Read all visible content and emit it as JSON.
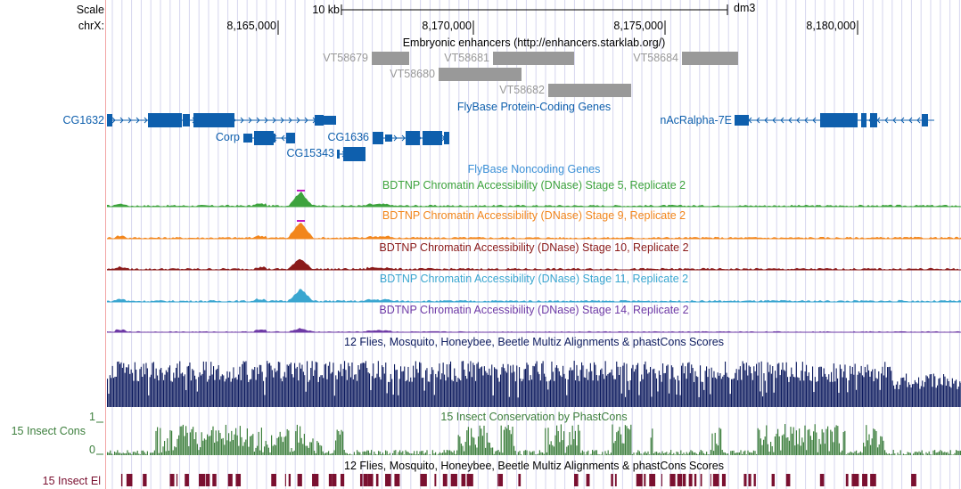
{
  "ruler": {
    "scale_label": "Scale",
    "chrom_label": "chrX:",
    "scalebar_label": "10 kb",
    "assembly": "dm3",
    "positions": [
      "8,165,000",
      "8,170,000",
      "8,175,000",
      "8,180,000"
    ]
  },
  "tracks": {
    "enhancers": {
      "title": "Embryonic enhancers (http://enhancers.starklab.org/)",
      "items": [
        "VT58679",
        "VT58681",
        "VT58684",
        "VT58680",
        "VT58682"
      ],
      "color": "#999999"
    },
    "protein_coding": {
      "title": "FlyBase Protein-Coding Genes",
      "genes": [
        "CG1632",
        "Corp",
        "CG1636",
        "CG15343",
        "nAcRalpha-7E"
      ],
      "color": "#0e5fad"
    },
    "noncoding": {
      "title": "FlyBase Noncoding Genes",
      "color": "#3a8fd6"
    },
    "dnase": [
      {
        "title": "BDTNP Chromatin Accessibility (DNase) Stage 5, Replicate 2",
        "color": "#3da33d"
      },
      {
        "title": "BDTNP Chromatin Accessibility (DNase) Stage 9, Replicate 2",
        "color": "#f2861c"
      },
      {
        "title": "BDTNP Chromatin Accessibility (DNase) Stage 10, Replicate 2",
        "color": "#8a1a1a"
      },
      {
        "title": "BDTNP Chromatin Accessibility (DNase) Stage 11, Replicate 2",
        "color": "#3aa6d0"
      },
      {
        "title": "BDTNP Chromatin Accessibility (DNase) Stage 14, Replicate 2",
        "color": "#6e3aa6"
      }
    ],
    "multiz": {
      "title": "12 Flies, Mosquito, Honeybee, Beetle Multiz Alignments & phastCons Scores",
      "color": "#0c1a5e"
    },
    "cons": {
      "title": "15 Insect Conservation by PhastCons",
      "side_label": "15 Insect Cons",
      "axis_max": "1",
      "axis_min": "0",
      "color": "#3d7f3d"
    },
    "elements": {
      "title": "12 Flies, Mosquito, Honeybee, Beetle Multiz Alignments & phastCons Scores",
      "side_label": "15 Insect El",
      "color": "#7a1030"
    }
  }
}
